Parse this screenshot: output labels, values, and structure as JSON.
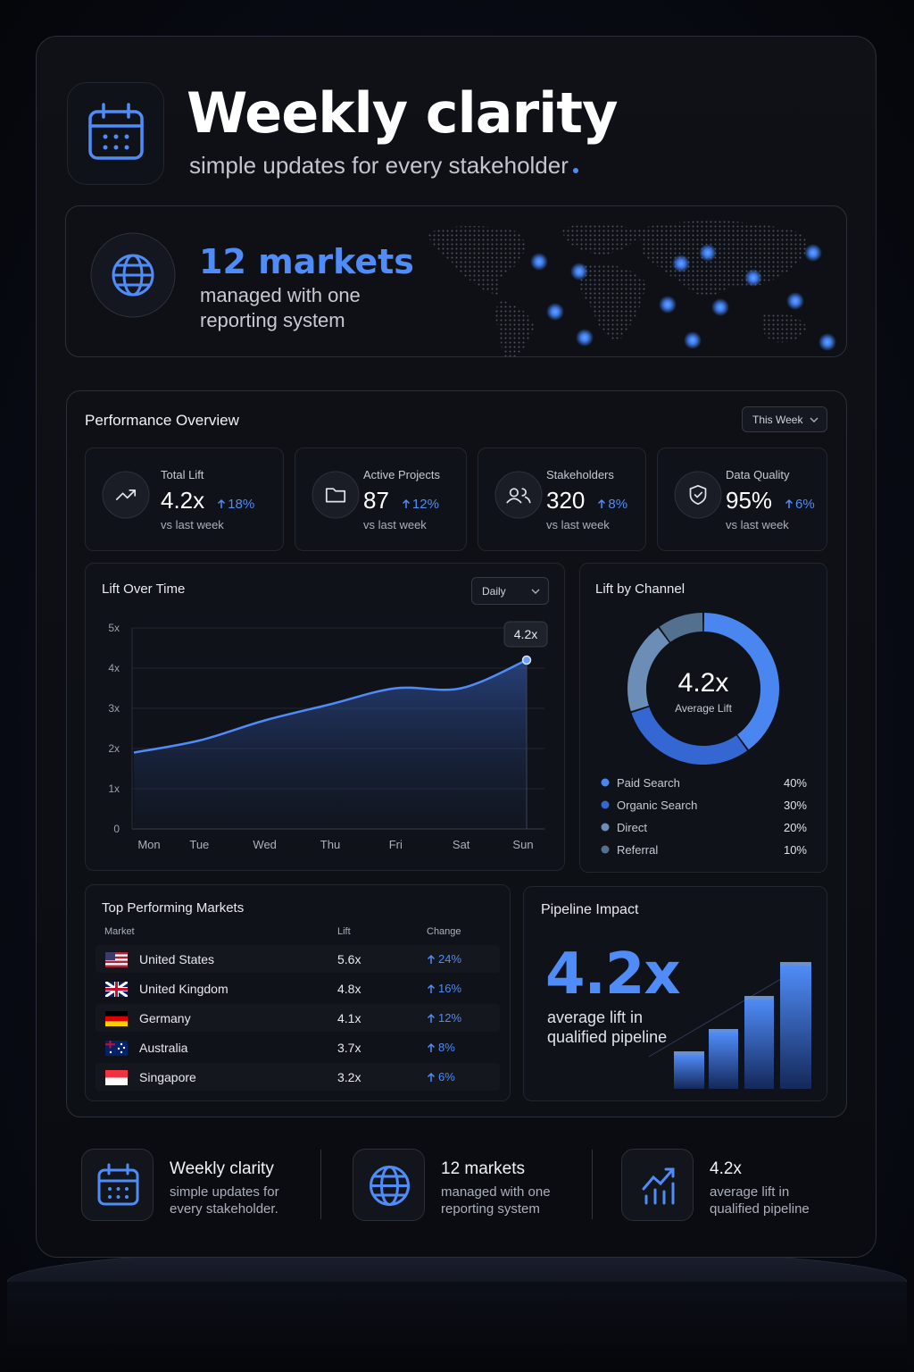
{
  "header": {
    "title": "Weekly clarity",
    "subtitle": "simple updates for every stakeholder"
  },
  "hero": {
    "value": "12 markets",
    "text": "managed with one reporting system"
  },
  "overview": {
    "title": "Performance Overview",
    "filter": "This Week",
    "kpis": [
      {
        "label": "Total Lift",
        "value": "4.2x",
        "change": "18%",
        "note": "vs last week"
      },
      {
        "label": "Active Projects",
        "value": "87",
        "change": "12%",
        "note": "vs last week"
      },
      {
        "label": "Stakeholders",
        "value": "320",
        "change": "8%",
        "note": "vs last week"
      },
      {
        "label": "Data Quality",
        "value": "95%",
        "change": "6%",
        "note": "vs last week"
      }
    ]
  },
  "chart_data": [
    {
      "type": "line",
      "title": "Lift Over Time",
      "filter": "Daily",
      "categories": [
        "Mon",
        "Tue",
        "Wed",
        "Thu",
        "Fri",
        "Sat",
        "Sun"
      ],
      "values": [
        1.9,
        2.2,
        2.7,
        3.1,
        3.5,
        3.5,
        4.2
      ],
      "annotation": "4.2x",
      "color": "#4f8cf7",
      "ylim": [
        0,
        5
      ],
      "yticks": [
        0,
        {
          "value": 1,
          "label": "1x"
        },
        {
          "value": 2,
          "label": "2x"
        },
        {
          "value": 3,
          "label": "3x"
        },
        {
          "value": 4,
          "label": "4x"
        },
        {
          "value": 5,
          "label": "5x"
        }
      ],
      "grid": true
    },
    {
      "type": "pie",
      "title": "Lift by Channel",
      "center_value": "4.2x",
      "center_label": "Average Lift",
      "categories": [
        "Paid Search",
        "Organic Search",
        "Direct",
        "Referral"
      ],
      "values": [
        40,
        30,
        20,
        10
      ],
      "value_labels": [
        "40%",
        "30%",
        "20%",
        "10%"
      ],
      "colors": [
        "#4a86f0",
        "#3567d2",
        "#6c8db6",
        "#54708f"
      ]
    }
  ],
  "markets": {
    "title": "Top Performing Markets",
    "columns": [
      "Market",
      "Lift",
      "Change"
    ],
    "rows": [
      [
        "United States",
        "5.6x",
        "24%"
      ],
      [
        "United Kingdom",
        "4.8x",
        "16%"
      ],
      [
        "Germany",
        "4.1x",
        "12%"
      ],
      [
        "Australia",
        "3.7x",
        "8%"
      ],
      [
        "Singapore",
        "3.2x",
        "6%"
      ]
    ]
  },
  "pipeline": {
    "title": "Pipeline Impact",
    "value": "4.2x",
    "text": "average lift in qualified pipeline"
  },
  "footer": [
    {
      "title": "Weekly clarity",
      "text": "simple updates for every stakeholder."
    },
    {
      "title": "12 markets",
      "text": "managed with one reporting system"
    },
    {
      "title": "4.2x",
      "text": "average lift in qualified pipeline"
    }
  ]
}
